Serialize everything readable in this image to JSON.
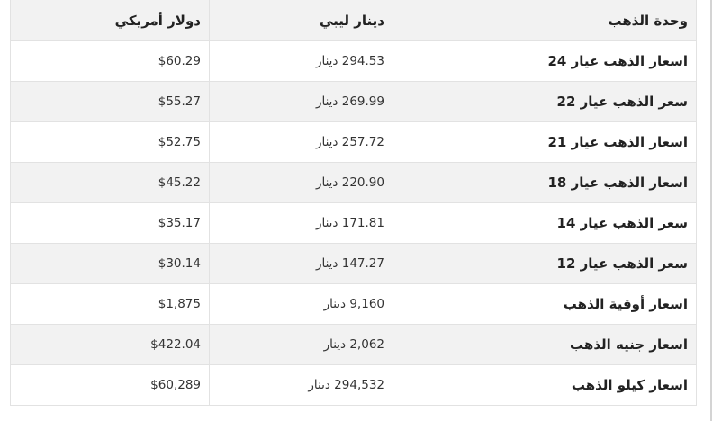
{
  "table": {
    "headers": [
      "وحدة الذهب",
      "دينار ليبي",
      "دولار أمريكي"
    ],
    "rows": [
      [
        "اسعار الذهب عيار 24",
        "294.53 دينار",
        "$60.29"
      ],
      [
        "سعر الذهب عيار 22",
        "269.99 دينار",
        "$55.27"
      ],
      [
        "اسعار الذهب عيار 21",
        "257.72 دينار",
        "$52.75"
      ],
      [
        "اسعار الذهب عيار 18",
        "220.90 دينار",
        "$45.22"
      ],
      [
        "سعر الذهب عيار 14",
        "171.81 دينار",
        "$35.17"
      ],
      [
        "سعر الذهب عيار 12",
        "147.27 دينار",
        "$30.14"
      ],
      [
        "اسعار أوقية الذهب",
        "9,160 دينار",
        "$1,875"
      ],
      [
        "اسعار جنيه الذهب",
        "2,062 دينار",
        "$422.04"
      ],
      [
        "اسعار كيلو الذهب",
        "294,532 دينار",
        "$60,289"
      ]
    ]
  }
}
